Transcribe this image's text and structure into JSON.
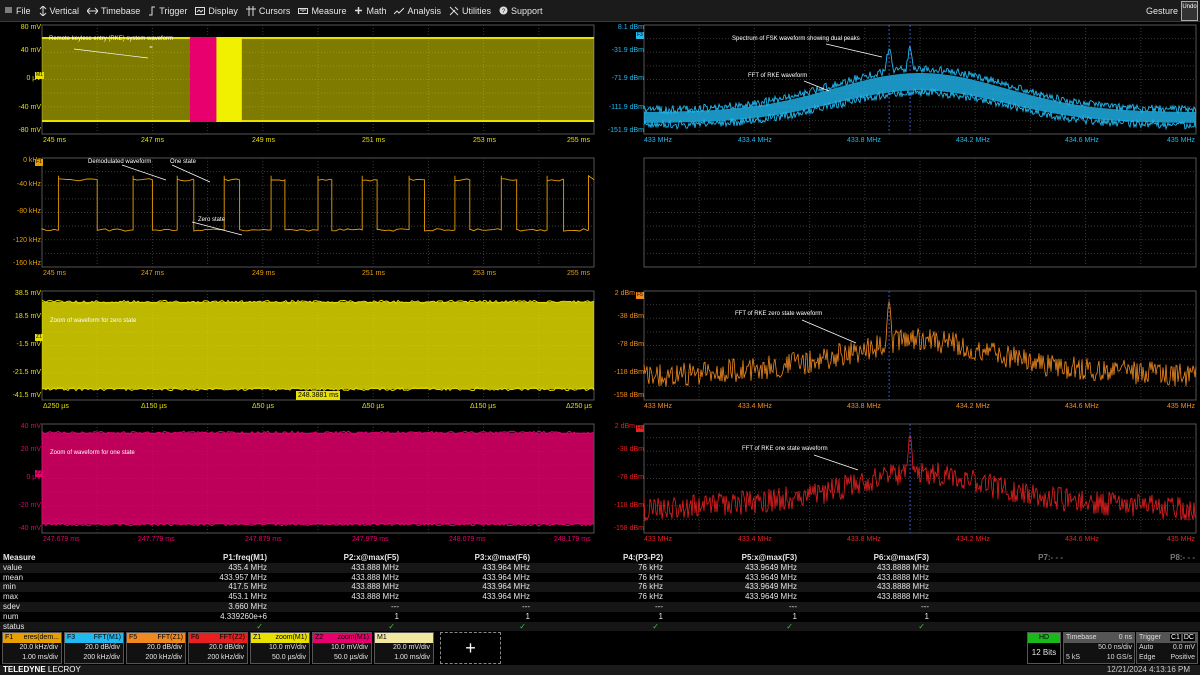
{
  "menu": {
    "file": "File",
    "vertical": "Vertical",
    "timebase": "Timebase",
    "trigger": "Trigger",
    "display": "Display",
    "cursors": "Cursors",
    "measure": "Measure",
    "math": "Math",
    "analysis": "Analysis",
    "utilities": "Utilities",
    "support": "Support",
    "gesture": "Gesture",
    "undo": "Undo"
  },
  "panels": {
    "m1": {
      "tag": "M1",
      "color": "#e8e000",
      "ylabels": [
        "80 mV",
        "40 mV",
        "0 µV",
        "-40 mV",
        "-80 mV"
      ],
      "xlabels": [
        "245 ms",
        "247 ms",
        "249 ms",
        "251 ms",
        "253 ms",
        "255 ms"
      ],
      "annotation": "Remote keyless entry (RKE) system waveform",
      "highlight_colors": [
        "#e8006e",
        "#f0f000"
      ]
    },
    "f3": {
      "tag": "F3",
      "color": "#22b8f0",
      "ylabels": [
        "8.1 dBm",
        "-31.9 dBm",
        "-71.9 dBm",
        "-111.9 dBm",
        "-151.9 dBm"
      ],
      "xlabels": [
        "433 MHz",
        "433.4 MHz",
        "433.8 MHz",
        "434.2 MHz",
        "434.6 MHz",
        "435 MHz"
      ],
      "annotations": [
        "Spectrum of FSK waveform showing dual peaks",
        "FFT of RKE waveform"
      ]
    },
    "f1": {
      "tag": "F1",
      "color": "#e8a000",
      "ylabels": [
        "0 kHz",
        "-40 kHz",
        "-80 kHz",
        "-120 kHz",
        "-160 kHz"
      ],
      "xlabels": [
        "245 ms",
        "247 ms",
        "249 ms",
        "251 ms",
        "253 ms",
        "255 ms"
      ],
      "annotations": [
        "Demodulated waveform",
        "One state",
        "Zero state"
      ]
    },
    "z1": {
      "tag": "Z1",
      "color": "#e8e000",
      "ylabels": [
        "38.5 mV",
        "18.5 mV",
        "-1.5 mV",
        "-21.5 mV",
        "-41.5 mV"
      ],
      "xlabels": [
        "Δ250 µs",
        "Δ150 µs",
        "Δ50 µs",
        "Δ50 µs",
        "Δ150 µs",
        "Δ250 µs"
      ],
      "annotation": "Zoom of waveform for zero state",
      "center": "248.3881 ms"
    },
    "f5": {
      "tag": "F5",
      "color": "#f08a20",
      "ylabels": [
        "2 dBm",
        "-38 dBm",
        "-78 dBm",
        "-118 dBm",
        "-158 dBm"
      ],
      "xlabels": [
        "433 MHz",
        "433.4 MHz",
        "433.8 MHz",
        "434.2 MHz",
        "434.6 MHz",
        "435 MHz"
      ],
      "annotation": "FFT of RKE zero state waveform"
    },
    "z2": {
      "tag": "Z2",
      "color": "#e8006e",
      "ylabels": [
        "40 mV",
        "20 mV",
        "0 µV",
        "-20 mV",
        "-40 mV"
      ],
      "xlabels": [
        "247.679 ms",
        "247.779 ms",
        "247.879 ms",
        "247.979 ms",
        "248.079 ms",
        "248.179 ms"
      ],
      "annotation": "Zoom of waveform for one state"
    },
    "f6": {
      "tag": "F6",
      "color": "#e82020",
      "ylabels": [
        "2 dBm",
        "-38 dBm",
        "-78 dBm",
        "-118 dBm",
        "-158 dBm"
      ],
      "xlabels": [
        "433 MHz",
        "433.4 MHz",
        "433.8 MHz",
        "434.2 MHz",
        "434.6 MHz",
        "435 MHz"
      ],
      "annotation": "FFT of RKE one state waveform"
    }
  },
  "measure": {
    "header": {
      "label": "Measure",
      "cols": [
        "P1:freq(M1)",
        "P2:x@max(F5)",
        "P3:x@max(F6)",
        "P4:(P3-P2)",
        "P5:x@max(F3)",
        "P6:x@max(F3)",
        "P7:- - -",
        "P8:- - -"
      ]
    },
    "rows": [
      {
        "label": "value",
        "cells": [
          "435.4 MHz",
          "433.888 MHz",
          "433.964 MHz",
          "76 kHz",
          "433.9649 MHz",
          "433.8888 MHz"
        ]
      },
      {
        "label": "mean",
        "cells": [
          "433.957 MHz",
          "433.888 MHz",
          "433.964 MHz",
          "76 kHz",
          "433.9649 MHz",
          "433.8888 MHz"
        ]
      },
      {
        "label": "min",
        "cells": [
          "417.5 MHz",
          "433.888 MHz",
          "433.964 MHz",
          "76 kHz",
          "433.9649 MHz",
          "433.8888 MHz"
        ]
      },
      {
        "label": "max",
        "cells": [
          "453.1 MHz",
          "433.888 MHz",
          "433.964 MHz",
          "76 kHz",
          "433.9649 MHz",
          "433.8888 MHz"
        ]
      },
      {
        "label": "sdev",
        "cells": [
          "3.660 MHz",
          "---",
          "---",
          "---",
          "---",
          "---"
        ]
      },
      {
        "label": "num",
        "cells": [
          "4.339260e+6",
          "1",
          "1",
          "1",
          "1",
          "1"
        ]
      },
      {
        "label": "status",
        "cells": [
          "✓",
          "✓",
          "✓",
          "✓",
          "✓",
          "✓"
        ]
      }
    ]
  },
  "descriptors": [
    {
      "name": "F1",
      "title": "eres(dem...",
      "color": "#e8a000",
      "v1": "20.0 kHz/div",
      "v2": "1.00 ms/div"
    },
    {
      "name": "F3",
      "title": "FFT(M1)",
      "color": "#22b8f0",
      "v1": "20.0 dB/div",
      "v2": "200 kHz/div"
    },
    {
      "name": "F5",
      "title": "FFT(Z1)",
      "color": "#f08a20",
      "v1": "20.0 dB/div",
      "v2": "200 kHz/div"
    },
    {
      "name": "F6",
      "title": "FFT(Z2)",
      "color": "#e82020",
      "v1": "20.0 dB/div",
      "v2": "200 kHz/div"
    },
    {
      "name": "Z1",
      "title": "zoom(M1)",
      "color": "#e8e000",
      "v1": "10.0 mV/div",
      "v2": "50.0 µs/div"
    },
    {
      "name": "Z2",
      "title": "zoom(M1)",
      "color": "#e8006e",
      "v1": "10.0 mV/div",
      "v2": "50.0 µs/div"
    },
    {
      "name": "M1",
      "title": "",
      "color": "#f0e8a0",
      "v1": "20.0 mV/div",
      "v2": "1.00 ms/div"
    }
  ],
  "add_button": "+",
  "hd": {
    "label": "HD",
    "bits": "12 Bits"
  },
  "timebase": {
    "label": "Timebase",
    "delay": "0 ns",
    "per_div": "50.0 ns/div",
    "samples": "5 kS",
    "rate": "10 GS/s"
  },
  "trigger": {
    "label": "Trigger",
    "badges": [
      "C1",
      "DC"
    ],
    "level": "0.0 mV",
    "mode": "Auto",
    "type": "Edge",
    "slope": "Positive"
  },
  "footer": {
    "brand1": "TELEDYNE",
    "brand2": "LECROY",
    "datetime": "12/21/2024 4:13:16 PM"
  }
}
